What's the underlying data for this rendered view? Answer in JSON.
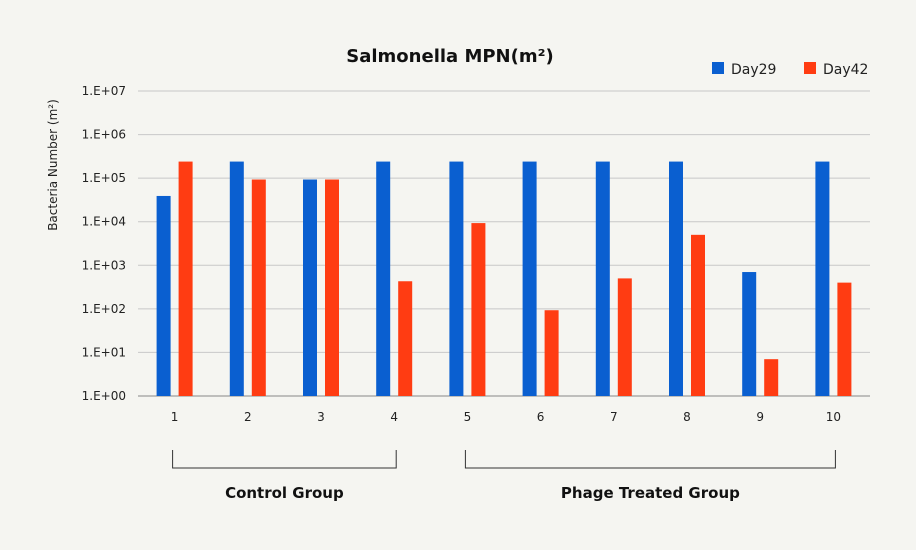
{
  "chart_data": {
    "type": "bar",
    "title": "Salmonella MPN(m²)",
    "ylabel": "Bacteria Number (m²)",
    "xlabel": "",
    "yscale": "log",
    "ylim": [
      1,
      10000000
    ],
    "yticks": [
      {
        "value": 1,
        "label": "1.E+00"
      },
      {
        "value": 10,
        "label": "1.E+01"
      },
      {
        "value": 100,
        "label": "1.E+02"
      },
      {
        "value": 1000,
        "label": "1.E+03"
      },
      {
        "value": 10000,
        "label": "1.E+04"
      },
      {
        "value": 100000,
        "label": "1.E+05"
      },
      {
        "value": 1000000,
        "label": "1.E+06"
      },
      {
        "value": 10000000,
        "label": "1.E+07"
      }
    ],
    "categories": [
      "1",
      "2",
      "3",
      "4",
      "5",
      "6",
      "7",
      "8",
      "9",
      "10"
    ],
    "series": [
      {
        "name": "Day29",
        "color": "#0a5fd0",
        "values": [
          39000,
          240000,
          93000,
          240000,
          240000,
          240000,
          240000,
          240000,
          700,
          240000
        ]
      },
      {
        "name": "Day42",
        "color": "#ff3c12",
        "values": [
          240000,
          93000,
          93000,
          430,
          9300,
          93,
          500,
          5000,
          7,
          400
        ]
      }
    ],
    "groups": [
      {
        "label": "Control Group",
        "from": "1",
        "to": "4"
      },
      {
        "label": "Phage Treated Group",
        "from": "5",
        "to": "10"
      }
    ],
    "grid": true,
    "legend_position": "top-right"
  }
}
